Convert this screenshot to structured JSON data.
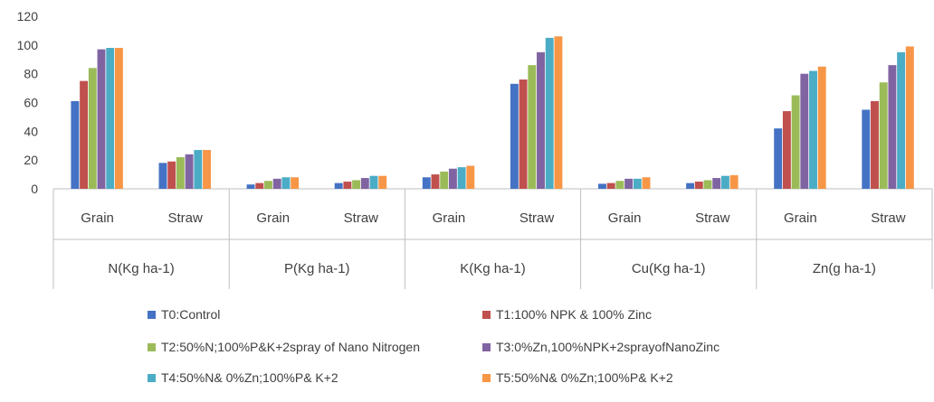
{
  "chart_data": {
    "type": "bar",
    "ylim": [
      0,
      120
    ],
    "yticks": [
      0,
      20,
      40,
      60,
      80,
      100,
      120
    ],
    "groups": [
      {
        "label": "N(Kg ha-1)",
        "subcategories": [
          "Grain",
          "Straw"
        ]
      },
      {
        "label": "P(Kg ha-1)",
        "subcategories": [
          "Grain",
          "Straw"
        ]
      },
      {
        "label": "K(Kg ha-1)",
        "subcategories": [
          "Grain",
          "Straw"
        ]
      },
      {
        "label": "Cu(Kg ha-1)",
        "subcategories": [
          "Grain",
          "Straw"
        ]
      },
      {
        "label": "Zn(g ha-1)",
        "subcategories": [
          "Grain",
          "Straw"
        ]
      }
    ],
    "series": [
      {
        "name": "T0:Control",
        "color": "#4472C4",
        "values": [
          61,
          18,
          3,
          4,
          8,
          73,
          3.5,
          4,
          42,
          55
        ]
      },
      {
        "name": "T1:100% NPK & 100% Zinc",
        "color": "#C0504D",
        "values": [
          75,
          19,
          4,
          5,
          10,
          76,
          4,
          5,
          54,
          61
        ]
      },
      {
        "name": "T2:50%N;100%P&K+2spray of Nano Nitrogen",
        "color": "#9BBB59",
        "values": [
          84,
          22,
          5.5,
          6,
          12,
          86,
          5.5,
          6,
          65,
          74
        ]
      },
      {
        "name": "T3:0%Zn,100%NPK+2sprayofNanoZinc",
        "color": "#8064A2",
        "values": [
          97,
          24,
          7,
          7.5,
          14,
          95,
          7,
          7.5,
          80,
          86
        ]
      },
      {
        "name": "T4:50%N& 0%Zn;100%P& K+2",
        "color": "#4BACC6",
        "values": [
          98,
          27,
          8,
          9,
          15,
          105,
          7,
          9,
          82,
          95
        ]
      },
      {
        "name": "T5:50%N& 0%Zn;100%P& K+2",
        "color": "#F79646",
        "values": [
          98,
          27,
          8,
          9,
          16,
          106,
          8,
          9.5,
          85,
          99
        ]
      }
    ]
  }
}
